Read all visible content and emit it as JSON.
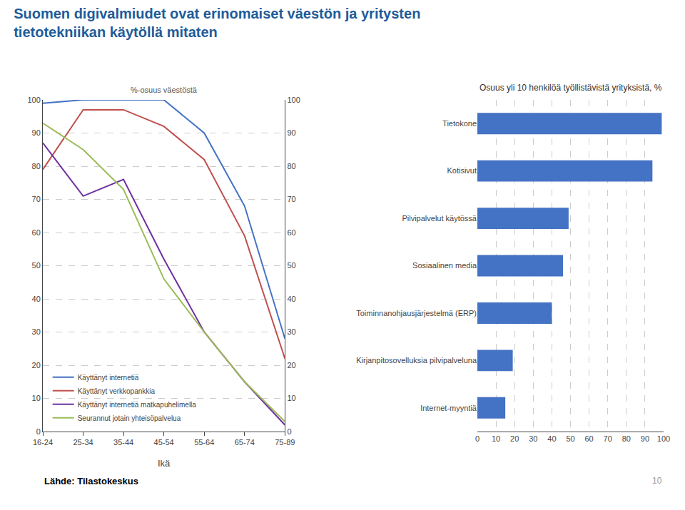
{
  "title": "Suomen digivalmiudet ovat erinomaiset väestön ja yritysten\ntietotekniikan käytöllä mitaten",
  "title_color": "#1F5C99",
  "annotations": [
    "Lähde: Tilastokeskus",
    "10"
  ],
  "chart_data": [
    {
      "type": "line",
      "subtitle": "%-osuus väestöstä",
      "xlabel": "Ikä",
      "categories": [
        "16-24",
        "25-34",
        "35-44",
        "45-54",
        "55-64",
        "65-74",
        "75-89"
      ],
      "series": [
        {
          "name": "Käyttänyt internetiä",
          "color": "#4472C4",
          "values": [
            99,
            100,
            100,
            100,
            90,
            68,
            28
          ]
        },
        {
          "name": "Käyttänyt verkkopankkia",
          "color": "#C0504D",
          "values": [
            79,
            97,
            97,
            92,
            82,
            59,
            22
          ]
        },
        {
          "name": "Käyttänyt internetiä matkapuhelimella",
          "color": "#7030A0",
          "values": [
            87,
            71,
            76,
            52,
            30,
            15,
            2
          ]
        },
        {
          "name": "Seurannut jotain yhteisöpalvelua",
          "color": "#9BBB59",
          "values": [
            93,
            85,
            73,
            46,
            30,
            15,
            3
          ]
        }
      ],
      "ylim": [
        0,
        100
      ],
      "yticks": [
        0,
        10,
        20,
        30,
        40,
        50,
        60,
        70,
        80,
        90,
        100
      ],
      "y2lim": [
        0,
        100
      ],
      "y2ticks": [
        0,
        10,
        20,
        30,
        40,
        50,
        60,
        70,
        80,
        90,
        100
      ],
      "grid": true,
      "legend": "lower left"
    },
    {
      "type": "bar",
      "orientation": "horizontal",
      "title": "Osuus yli 10 henkilöä työllistävistä yrityksistä, %",
      "categories": [
        "Tietokone",
        "Kotisivut",
        "Pilvipalvelut käytössä",
        "Sosiaalinen media",
        "Toiminnanohjausjärjestelmä (ERP)",
        "Kirjanpitosovelluksia pilvipalveluna",
        "Internet-myyntiä"
      ],
      "values": [
        99,
        94,
        49,
        46,
        40,
        19,
        15
      ],
      "color": "#4472C4",
      "xlim": [
        0,
        100
      ],
      "xticks": [
        0,
        10,
        20,
        30,
        40,
        50,
        60,
        70,
        80,
        90,
        100
      ],
      "grid": true
    }
  ]
}
